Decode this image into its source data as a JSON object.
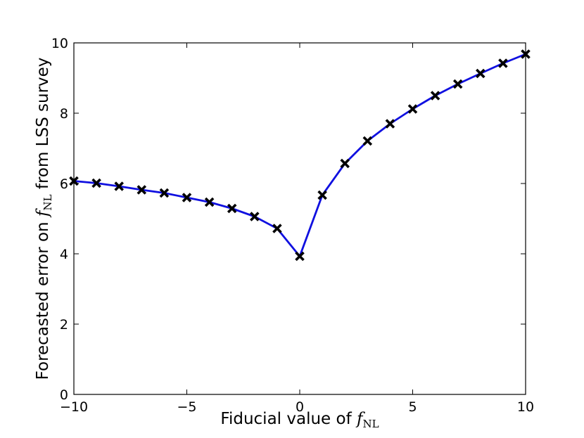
{
  "chart_data": {
    "type": "line",
    "xlabel": "Fiducial value of",
    "xlabel_math": "f",
    "xlabel_sub": "NL",
    "ylabel_prefix": "Forecasted error on",
    "ylabel_math": "f",
    "ylabel_sub": "NL",
    "ylabel_suffix": "from LSS survey",
    "xlim": [
      -10,
      10
    ],
    "ylim": [
      0,
      10
    ],
    "x_ticks": [
      -10,
      -5,
      0,
      5,
      10
    ],
    "x_tick_labels": [
      "−10",
      "−5",
      "0",
      "5",
      "10"
    ],
    "y_ticks": [
      0,
      2,
      4,
      6,
      8,
      10
    ],
    "y_tick_labels": [
      "0",
      "2",
      "4",
      "6",
      "8",
      "10"
    ],
    "grid": false,
    "series": [
      {
        "line_color": "#1010e0",
        "marker": "x",
        "marker_color": "#000000",
        "x": [
          -10,
          -9,
          -8,
          -7,
          -6,
          -5,
          -4,
          -3,
          -2,
          -1,
          0,
          1,
          2,
          3,
          4,
          5,
          6,
          7,
          8,
          9,
          10
        ],
        "y": [
          6.07,
          6.01,
          5.92,
          5.82,
          5.73,
          5.6,
          5.47,
          5.29,
          5.06,
          4.72,
          3.93,
          5.67,
          6.57,
          7.21,
          7.7,
          8.12,
          8.5,
          8.83,
          9.13,
          9.42,
          9.68
        ]
      }
    ]
  }
}
